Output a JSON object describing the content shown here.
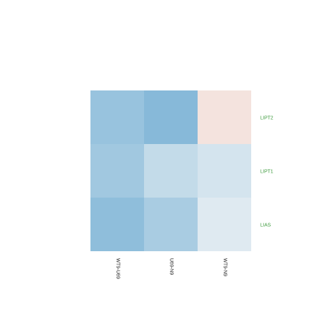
{
  "chart_data": {
    "type": "heatmap",
    "title": "",
    "xlabel": "",
    "ylabel": "",
    "columns": [
      "WT9-U69",
      "U69-N9",
      "WT9-N9"
    ],
    "rows": [
      "LIPT2",
      "LIPT1",
      "LIAS"
    ],
    "values": [
      [
        -0.55,
        -0.65,
        0.18
      ],
      [
        -0.5,
        -0.3,
        -0.2
      ],
      [
        -0.6,
        -0.45,
        -0.14
      ]
    ],
    "color_scale": {
      "low": "#4a98c9",
      "mid": "#f7f7f7",
      "high": "#e8866a"
    },
    "row_label_color": "#3c9a3c",
    "legend": "none"
  }
}
